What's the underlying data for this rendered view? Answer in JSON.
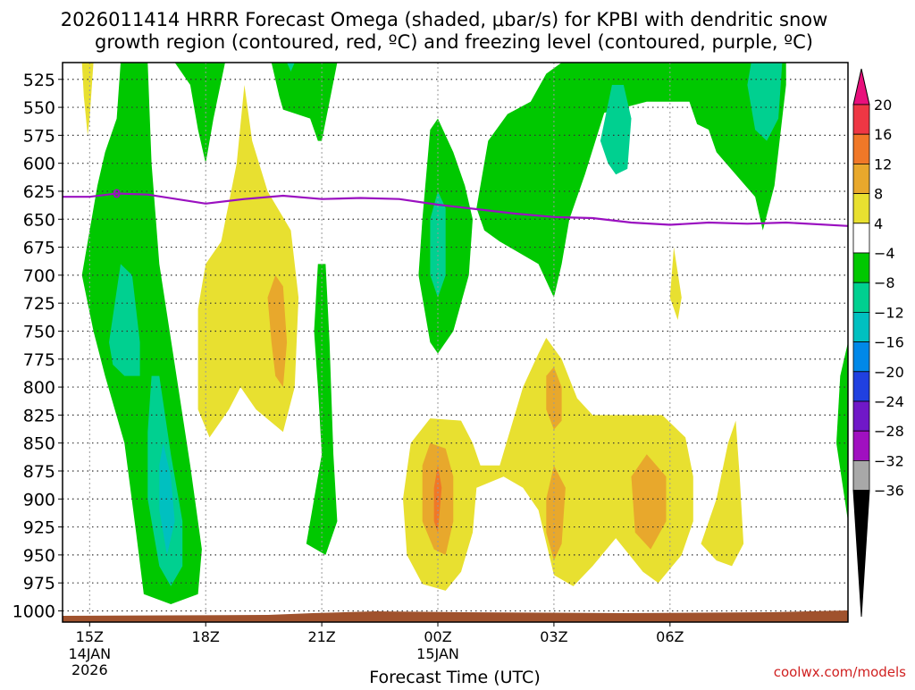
{
  "chart_data": {
    "type": "heatmap",
    "title_line1": "2026011414 HRRR Forecast Omega (shaded, μbar/s) for KPBI with dendritic snow",
    "title_line2": "growth region (contoured, red, ºC) and freezing level (contoured, purple, ºC)",
    "xlabel": "Forecast Time (UTC)",
    "watermark": "coolwx.com/models",
    "x_range_hours": [
      -0.7,
      19.6
    ],
    "y_range_hPa": [
      510,
      1010
    ],
    "x_ticks": [
      {
        "h": 0,
        "label": "15Z",
        "sub1": "14JAN",
        "sub2": "2026"
      },
      {
        "h": 3,
        "label": "18Z",
        "sub1": "",
        "sub2": ""
      },
      {
        "h": 6,
        "label": "21Z",
        "sub1": "",
        "sub2": ""
      },
      {
        "h": 9,
        "label": "00Z",
        "sub1": "15JAN",
        "sub2": ""
      },
      {
        "h": 12,
        "label": "03Z",
        "sub1": "",
        "sub2": ""
      },
      {
        "h": 15,
        "label": "06Z",
        "sub1": "",
        "sub2": ""
      }
    ],
    "y_ticks": [
      "525",
      "550",
      "575",
      "600",
      "625",
      "650",
      "675",
      "700",
      "725",
      "750",
      "775",
      "800",
      "825",
      "850",
      "875",
      "900",
      "925",
      "950",
      "975",
      "1000"
    ],
    "colorbar": {
      "labels": [
        "20",
        "16",
        "12",
        "8",
        "4",
        "−4",
        "−8",
        "−12",
        "−16",
        "−20",
        "−24",
        "−28",
        "−32",
        "−36"
      ],
      "colors": [
        "#ee3744",
        "#f07828",
        "#e8a82c",
        "#e8e030",
        "#ffffff",
        "#00c800",
        "#00d090",
        "#00c0c0",
        "#0088e8",
        "#2040e0",
        "#7018c8",
        "#a010c0",
        "#a8a8a8"
      ],
      "top_color": "#e8107c",
      "bottom_color": "#000000"
    },
    "freezing_level": {
      "label": "0",
      "color": "#9a10c0",
      "points": [
        [
          -0.7,
          630
        ],
        [
          0,
          630
        ],
        [
          0.7,
          627
        ],
        [
          1.5,
          628
        ],
        [
          3,
          636
        ],
        [
          4,
          632
        ],
        [
          5,
          629
        ],
        [
          6,
          632
        ],
        [
          7,
          631
        ],
        [
          8,
          632
        ],
        [
          9,
          637
        ],
        [
          10,
          641
        ],
        [
          11,
          645
        ],
        [
          12,
          648
        ],
        [
          13,
          649
        ],
        [
          14,
          653
        ],
        [
          15,
          655
        ],
        [
          16,
          653
        ],
        [
          17,
          654
        ],
        [
          18,
          653
        ],
        [
          19.6,
          656
        ]
      ]
    },
    "shading": [
      {
        "name": "ascent-band-left",
        "color": "#00c800",
        "pts": [
          [
            -0.2,
            700
          ],
          [
            0.2,
            620
          ],
          [
            0.4,
            590
          ],
          [
            0.7,
            560
          ],
          [
            0.8,
            510
          ],
          [
            1.5,
            510
          ],
          [
            1.6,
            600
          ],
          [
            1.8,
            690
          ],
          [
            2.2,
            780
          ],
          [
            2.6,
            870
          ],
          [
            2.9,
            945
          ],
          [
            2.8,
            985
          ],
          [
            2.1,
            994
          ],
          [
            1.4,
            985
          ],
          [
            1.2,
            930
          ],
          [
            0.9,
            850
          ],
          [
            0.4,
            790
          ],
          [
            0.1,
            750
          ]
        ]
      },
      {
        "name": "ascent-core-left-upper",
        "color": "#00d090",
        "pts": [
          [
            0.5,
            760
          ],
          [
            0.8,
            690
          ],
          [
            1.1,
            700
          ],
          [
            1.3,
            760
          ],
          [
            1.3,
            790
          ],
          [
            0.9,
            790
          ],
          [
            0.6,
            780
          ]
        ]
      },
      {
        "name": "ascent-core-left-lower",
        "color": "#00d090",
        "pts": [
          [
            1.6,
            790
          ],
          [
            1.8,
            790
          ],
          [
            2.1,
            860
          ],
          [
            2.4,
            920
          ],
          [
            2.4,
            960
          ],
          [
            2.1,
            978
          ],
          [
            1.8,
            960
          ],
          [
            1.5,
            900
          ],
          [
            1.5,
            840
          ]
        ]
      },
      {
        "name": "ascent-max-left",
        "color": "#00c0c0",
        "pts": [
          [
            1.9,
            850
          ],
          [
            2.1,
            880
          ],
          [
            2.2,
            920
          ],
          [
            2.0,
            950
          ],
          [
            1.8,
            910
          ],
          [
            1.8,
            870
          ]
        ]
      },
      {
        "name": "ascent-upper-18z",
        "color": "#00c800",
        "pts": [
          [
            2.2,
            510
          ],
          [
            3.5,
            510
          ],
          [
            3.2,
            560
          ],
          [
            3.0,
            600
          ],
          [
            2.8,
            570
          ],
          [
            2.6,
            530
          ]
        ]
      },
      {
        "name": "ascent-upper-20z",
        "color": "#00c800",
        "pts": [
          [
            4.7,
            510
          ],
          [
            6.4,
            510
          ],
          [
            6.0,
            580
          ],
          [
            5.9,
            580
          ],
          [
            5.7,
            560
          ],
          [
            5.0,
            552
          ],
          [
            4.9,
            540
          ]
        ]
      },
      {
        "name": "ascent-core-upper-20z",
        "color": "#00d090",
        "pts": [
          [
            5.1,
            510
          ],
          [
            5.3,
            510
          ],
          [
            5.2,
            518
          ]
        ]
      },
      {
        "name": "ascent-band-21z",
        "color": "#00c800",
        "pts": [
          [
            5.9,
            690
          ],
          [
            6.1,
            690
          ],
          [
            6.2,
            760
          ],
          [
            6.3,
            860
          ],
          [
            6.4,
            920
          ],
          [
            6.1,
            950
          ],
          [
            5.6,
            940
          ],
          [
            5.8,
            900
          ],
          [
            6.0,
            860
          ],
          [
            5.9,
            800
          ],
          [
            5.8,
            750
          ]
        ]
      },
      {
        "name": "ascent-band-00z",
        "color": "#00c800",
        "pts": [
          [
            8.6,
            650
          ],
          [
            8.8,
            570
          ],
          [
            9.0,
            560
          ],
          [
            9.4,
            590
          ],
          [
            9.7,
            620
          ],
          [
            9.9,
            650
          ],
          [
            9.8,
            700
          ],
          [
            9.4,
            750
          ],
          [
            9.0,
            770
          ],
          [
            8.8,
            760
          ],
          [
            8.5,
            700
          ]
        ]
      },
      {
        "name": "ascent-core-00z",
        "color": "#00d090",
        "pts": [
          [
            8.8,
            650
          ],
          [
            9.0,
            625
          ],
          [
            9.2,
            640
          ],
          [
            9.2,
            700
          ],
          [
            9.0,
            720
          ],
          [
            8.8,
            700
          ]
        ]
      },
      {
        "name": "ascent-band-right",
        "color": "#00c800",
        "pts": [
          [
            10.0,
            640
          ],
          [
            10.3,
            580
          ],
          [
            10.8,
            556
          ],
          [
            11.4,
            545
          ],
          [
            11.8,
            520
          ],
          [
            12.2,
            510
          ],
          [
            18.0,
            510
          ],
          [
            18.0,
            530
          ],
          [
            17.7,
            620
          ],
          [
            17.4,
            660
          ],
          [
            17.2,
            630
          ],
          [
            16.7,
            610
          ],
          [
            16.2,
            590
          ],
          [
            16.0,
            570
          ],
          [
            15.7,
            565
          ],
          [
            15.5,
            545
          ],
          [
            14.4,
            545
          ],
          [
            13.3,
            555
          ],
          [
            12.8,
            610
          ],
          [
            12.4,
            650
          ],
          [
            12.2,
            690
          ],
          [
            12.0,
            720
          ],
          [
            11.6,
            690
          ],
          [
            11.1,
            680
          ],
          [
            10.6,
            670
          ],
          [
            10.2,
            660
          ]
        ]
      },
      {
        "name": "ascent-core-right-1",
        "color": "#00d090",
        "pts": [
          [
            13.2,
            580
          ],
          [
            13.5,
            530
          ],
          [
            13.8,
            530
          ],
          [
            14.0,
            560
          ],
          [
            13.9,
            605
          ],
          [
            13.6,
            610
          ],
          [
            13.4,
            600
          ]
        ]
      },
      {
        "name": "ascent-core-right-2",
        "color": "#00d090",
        "pts": [
          [
            17.0,
            530
          ],
          [
            17.1,
            510
          ],
          [
            17.9,
            510
          ],
          [
            17.8,
            560
          ],
          [
            17.5,
            580
          ],
          [
            17.2,
            570
          ]
        ]
      },
      {
        "name": "ascent-edge-right",
        "color": "#00c800",
        "pts": [
          [
            19.6,
            760
          ],
          [
            19.4,
            790
          ],
          [
            19.3,
            850
          ],
          [
            19.6,
            920
          ]
        ]
      },
      {
        "name": "sink-top-left",
        "color": "#e8e030",
        "pts": [
          [
            -0.2,
            510
          ],
          [
            0.1,
            510
          ],
          [
            0.0,
            560
          ],
          [
            -0.05,
            575
          ],
          [
            -0.15,
            540
          ]
        ]
      },
      {
        "name": "sink-19z-plume",
        "color": "#e8e030",
        "pts": [
          [
            2.8,
            730
          ],
          [
            3.0,
            690
          ],
          [
            3.4,
            670
          ],
          [
            3.8,
            600
          ],
          [
            4.0,
            530
          ],
          [
            4.2,
            580
          ],
          [
            4.6,
            625
          ],
          [
            5.2,
            660
          ],
          [
            5.4,
            720
          ],
          [
            5.3,
            800
          ],
          [
            5.0,
            840
          ],
          [
            4.3,
            820
          ],
          [
            3.9,
            800
          ],
          [
            3.6,
            820
          ],
          [
            3.1,
            845
          ],
          [
            2.8,
            820
          ]
        ]
      },
      {
        "name": "sink-19z-core",
        "color": "#e8a82c",
        "pts": [
          [
            4.6,
            720
          ],
          [
            4.8,
            700
          ],
          [
            5.0,
            710
          ],
          [
            5.1,
            760
          ],
          [
            5.0,
            800
          ],
          [
            4.8,
            790
          ],
          [
            4.7,
            760
          ]
        ]
      },
      {
        "name": "sink-lower-right",
        "color": "#e8e030",
        "pts": [
          [
            8.1,
            900
          ],
          [
            8.3,
            850
          ],
          [
            8.8,
            828
          ],
          [
            9.6,
            830
          ],
          [
            9.9,
            850
          ],
          [
            10.1,
            870
          ],
          [
            10.6,
            870
          ],
          [
            11.2,
            800
          ],
          [
            11.6,
            770
          ],
          [
            11.8,
            756
          ],
          [
            12.2,
            775
          ],
          [
            12.6,
            810
          ],
          [
            13.0,
            825
          ],
          [
            14.0,
            825
          ],
          [
            14.8,
            825
          ],
          [
            15.4,
            845
          ],
          [
            15.6,
            880
          ],
          [
            15.6,
            920
          ],
          [
            15.3,
            950
          ],
          [
            14.7,
            975
          ],
          [
            14.3,
            965
          ],
          [
            13.6,
            935
          ],
          [
            13.0,
            960
          ],
          [
            12.5,
            978
          ],
          [
            12.0,
            968
          ],
          [
            11.6,
            910
          ],
          [
            11.2,
            890
          ],
          [
            10.7,
            880
          ],
          [
            10.0,
            890
          ],
          [
            9.9,
            930
          ],
          [
            9.6,
            965
          ],
          [
            9.2,
            982
          ],
          [
            8.6,
            976
          ],
          [
            8.2,
            950
          ]
        ]
      },
      {
        "name": "sink-core-00z",
        "color": "#e8a82c",
        "pts": [
          [
            8.6,
            870
          ],
          [
            8.8,
            850
          ],
          [
            9.2,
            855
          ],
          [
            9.4,
            880
          ],
          [
            9.4,
            920
          ],
          [
            9.2,
            950
          ],
          [
            8.9,
            945
          ],
          [
            8.6,
            920
          ]
        ]
      },
      {
        "name": "sink-max-00z",
        "color": "#f07828",
        "pts": [
          [
            8.9,
            890
          ],
          [
            9.0,
            870
          ],
          [
            9.1,
            890
          ],
          [
            9.0,
            930
          ],
          [
            8.9,
            920
          ]
        ]
      },
      {
        "name": "sink-core-02z",
        "color": "#e8a82c",
        "pts": [
          [
            11.8,
            790
          ],
          [
            12.0,
            782
          ],
          [
            12.2,
            800
          ],
          [
            12.2,
            830
          ],
          [
            12.0,
            838
          ],
          [
            11.8,
            820
          ]
        ]
      },
      {
        "name": "sink-core-03z",
        "color": "#e8a82c",
        "pts": [
          [
            11.8,
            900
          ],
          [
            12.0,
            870
          ],
          [
            12.3,
            890
          ],
          [
            12.2,
            940
          ],
          [
            12.0,
            955
          ],
          [
            11.8,
            930
          ]
        ]
      },
      {
        "name": "sink-core-05z",
        "color": "#e8a82c",
        "pts": [
          [
            14.0,
            880
          ],
          [
            14.4,
            860
          ],
          [
            14.9,
            880
          ],
          [
            14.9,
            920
          ],
          [
            14.5,
            945
          ],
          [
            14.1,
            930
          ]
        ]
      },
      {
        "name": "sink-small-06z",
        "color": "#e8e030",
        "pts": [
          [
            15.0,
            720
          ],
          [
            15.1,
            675
          ],
          [
            15.3,
            720
          ],
          [
            15.2,
            740
          ]
        ]
      },
      {
        "name": "sink-small-07z",
        "color": "#e8e030",
        "pts": [
          [
            15.8,
            940
          ],
          [
            16.2,
            900
          ],
          [
            16.5,
            850
          ],
          [
            16.7,
            830
          ],
          [
            16.8,
            880
          ],
          [
            16.9,
            940
          ],
          [
            16.6,
            960
          ],
          [
            16.2,
            955
          ]
        ]
      }
    ]
  }
}
